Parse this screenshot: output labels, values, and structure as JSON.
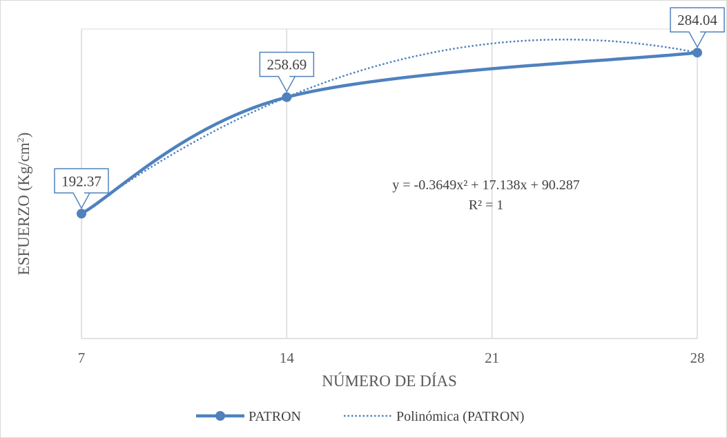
{
  "chart_data": {
    "type": "line",
    "xlabel": "NÚMERO DE DÍAS",
    "ylabel_main": "ESFUERZO (Kg/cm",
    "ylabel_sup": "2",
    "ylabel_end": ")",
    "x_ticks": [
      "7",
      "14",
      "21",
      "28"
    ],
    "xlim": [
      7,
      28
    ],
    "ylim": [
      180,
      300
    ],
    "grid": "vertical",
    "legend_position": "bottom",
    "series": [
      {
        "name": "PATRON",
        "color": "#4F81BD",
        "style": "smoothed line with markers",
        "x": [
          7,
          14,
          28
        ],
        "y": [
          192.37,
          258.69,
          284.04
        ],
        "labels": [
          "192.37",
          "258.69",
          "284.04"
        ]
      },
      {
        "name": "Polinómica (PATRON)",
        "color": "#4F81BD",
        "style": "dotted trendline",
        "kind": "polynomial order 2",
        "coefficients": [
          -0.3649,
          17.138,
          90.287
        ],
        "equation": "y = -0.3649x² + 17.138x + 90.287",
        "r_squared": "R² = 1"
      }
    ]
  }
}
